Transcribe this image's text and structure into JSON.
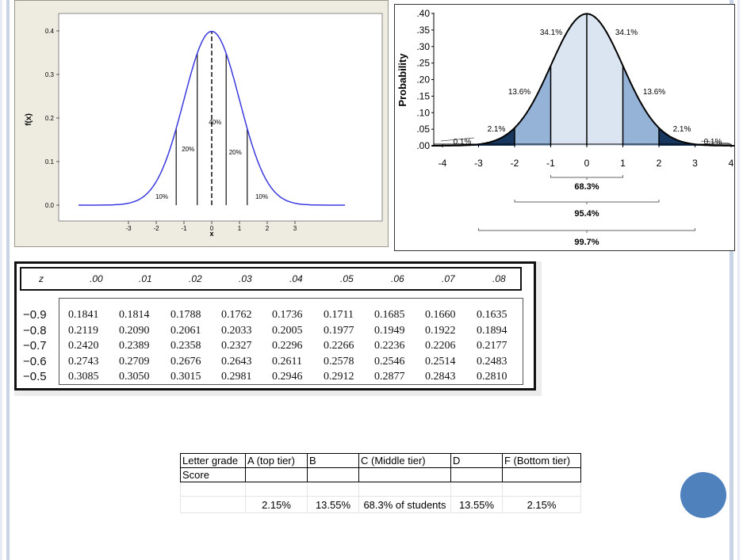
{
  "left_chart": {
    "ylabel": "f(x)",
    "xlabel": "x",
    "yticks": [
      "0.4",
      "0.3",
      "0.2",
      "0.1",
      "0.0"
    ],
    "xticks": [
      "-3",
      "-2",
      "-1",
      "0",
      "1",
      "2",
      "3"
    ],
    "region_labels": [
      "10%",
      "20%",
      "40%",
      "20%",
      "10%"
    ],
    "boundaries": [
      -1.28,
      -0.52,
      0,
      0.52,
      1.28
    ],
    "curve_color": "#3a3adf"
  },
  "right_chart": {
    "ylabel": "Probability",
    "yticks": [
      ".40",
      ".35",
      ".30",
      ".25",
      ".20",
      ".15",
      ".10",
      ".05",
      ".00"
    ],
    "xticks": [
      "-4",
      "-3",
      "-2",
      "-1",
      "0",
      "1",
      "2",
      "3",
      "4"
    ],
    "left_labels": [
      "0.1%",
      "2.1%",
      "13.6%",
      "34.1%"
    ],
    "right_labels": [
      "34.1%",
      "13.6%",
      "2.1%",
      "0.1%"
    ],
    "brackets": [
      "68.3%",
      "95.4%",
      "99.7%"
    ],
    "fill_light": "#dbe5f1",
    "fill_mid": "#95b3d7",
    "fill_dark": "#17375e"
  },
  "z_table": {
    "header_z": "z",
    "columns": [
      ".00",
      ".01",
      ".02",
      ".03",
      ".04",
      ".05",
      ".06",
      ".07",
      ".08"
    ],
    "rows": [
      {
        "z": "−0.9",
        "values": [
          "0.1841",
          "0.1814",
          "0.1788",
          "0.1762",
          "0.1736",
          "0.1711",
          "0.1685",
          "0.1660",
          "0.1635"
        ]
      },
      {
        "z": "−0.8",
        "values": [
          "0.2119",
          "0.2090",
          "0.2061",
          "0.2033",
          "0.2005",
          "0.1977",
          "0.1949",
          "0.1922",
          "0.1894"
        ]
      },
      {
        "z": "−0.7",
        "values": [
          "0.2420",
          "0.2389",
          "0.2358",
          "0.2327",
          "0.2296",
          "0.2266",
          "0.2236",
          "0.2206",
          "0.2177"
        ]
      },
      {
        "z": "−0.6",
        "values": [
          "0.2743",
          "0.2709",
          "0.2676",
          "0.2643",
          "0.2611",
          "0.2578",
          "0.2546",
          "0.2514",
          "0.2483"
        ]
      },
      {
        "z": "−0.5",
        "values": [
          "0.3085",
          "0.3050",
          "0.3015",
          "0.2981",
          "0.2946",
          "0.2912",
          "0.2877",
          "0.2843",
          "0.2810"
        ]
      }
    ]
  },
  "grade_table": {
    "headers": [
      "Letter grade",
      "A (top tier)",
      "B",
      "C (Middle tier)",
      "D",
      "F (Bottom tier)"
    ],
    "score_label": "Score",
    "percentages": [
      "2.15%",
      "13.55%",
      "68.3% of students",
      "13.55%",
      "2.15%"
    ]
  },
  "accent_color": "#4f81bd"
}
